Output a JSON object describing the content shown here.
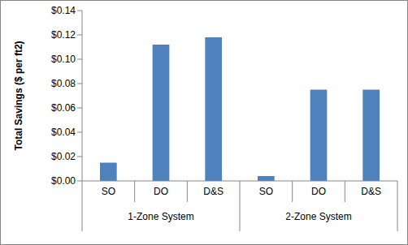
{
  "chart_data": {
    "type": "bar",
    "y_label": "Total Savings ($ per ft2)",
    "categories": [
      "SO",
      "DO",
      "D&S",
      "SO",
      "DO",
      "D&S"
    ],
    "category_groups": [
      "1-Zone System",
      "1-Zone System",
      "1-Zone System",
      "2-Zone System",
      "2-Zone System",
      "2-Zone System"
    ],
    "values": [
      0.015,
      0.112,
      0.118,
      0.004,
      0.075,
      0.075
    ],
    "color": "#4f81bd",
    "ylim": [
      0,
      0.14
    ],
    "yticks": [
      {
        "value": 0,
        "label": "$0.00"
      },
      {
        "value": 0.02,
        "label": "$0.02"
      },
      {
        "value": 0.04,
        "label": "$0.04"
      },
      {
        "value": 0.06,
        "label": "$0.06"
      },
      {
        "value": 0.08,
        "label": "$0.08"
      },
      {
        "value": 0.1,
        "label": "$0.10"
      },
      {
        "value": 0.12,
        "label": "$0.12"
      },
      {
        "value": 0.14,
        "label": "$0.14"
      }
    ],
    "grid": false
  }
}
